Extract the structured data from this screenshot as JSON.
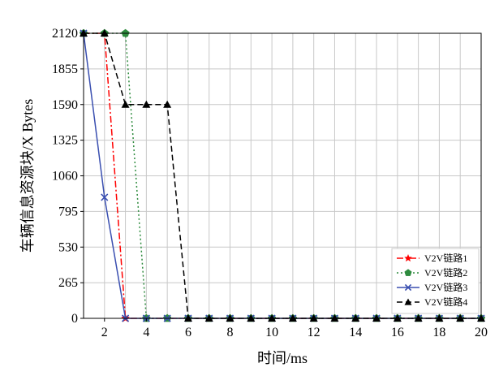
{
  "chart_data": {
    "type": "line",
    "xlabel": "时间/ms",
    "ylabel": "车辆信息资源块/X Bytes",
    "xlim": [
      1,
      20
    ],
    "ylim": [
      0,
      2120
    ],
    "xticks": [
      2,
      4,
      6,
      8,
      10,
      12,
      14,
      16,
      18,
      20
    ],
    "yticks": [
      0,
      265,
      530,
      795,
      1060,
      1325,
      1590,
      1855,
      2120
    ],
    "grid": true,
    "legend_position": "lower-right",
    "series": [
      {
        "name": "V2V链路1",
        "color": "#ff0000",
        "line_style": "dashdot",
        "marker": "star",
        "x": [
          1,
          2,
          3,
          4,
          5,
          6,
          7,
          8,
          9,
          10,
          11,
          12,
          13,
          14,
          15,
          16,
          17,
          18,
          19,
          20
        ],
        "values": [
          2120,
          2120,
          0,
          0,
          0,
          0,
          0,
          0,
          0,
          0,
          0,
          0,
          0,
          0,
          0,
          0,
          0,
          0,
          0,
          0
        ]
      },
      {
        "name": "V2V链路2",
        "color": "#2e8b3e",
        "line_style": "dotted",
        "marker": "pentagon",
        "x": [
          1,
          2,
          3,
          4,
          5,
          6,
          7,
          8,
          9,
          10,
          11,
          12,
          13,
          14,
          15,
          16,
          17,
          18,
          19,
          20
        ],
        "values": [
          2120,
          2120,
          2120,
          0,
          0,
          0,
          0,
          0,
          0,
          0,
          0,
          0,
          0,
          0,
          0,
          0,
          0,
          0,
          0,
          0
        ]
      },
      {
        "name": "V2V链路3",
        "color": "#3a4fb0",
        "line_style": "solid",
        "marker": "x",
        "x": [
          1,
          2,
          3,
          4,
          5,
          6,
          7,
          8,
          9,
          10,
          11,
          12,
          13,
          14,
          15,
          16,
          17,
          18,
          19,
          20
        ],
        "values": [
          2120,
          900,
          0,
          0,
          0,
          0,
          0,
          0,
          0,
          0,
          0,
          0,
          0,
          0,
          0,
          0,
          0,
          0,
          0,
          0
        ]
      },
      {
        "name": "V2V链路4",
        "color": "#000000",
        "line_style": "dashed",
        "marker": "triangle",
        "x": [
          1,
          2,
          3,
          4,
          5,
          6,
          7,
          8,
          9,
          10,
          11,
          12,
          13,
          14,
          15,
          16,
          17,
          18,
          19,
          20
        ],
        "values": [
          2120,
          2120,
          1590,
          1590,
          1590,
          0,
          0,
          0,
          0,
          0,
          0,
          0,
          0,
          0,
          0,
          0,
          0,
          0,
          0,
          0
        ]
      }
    ]
  }
}
